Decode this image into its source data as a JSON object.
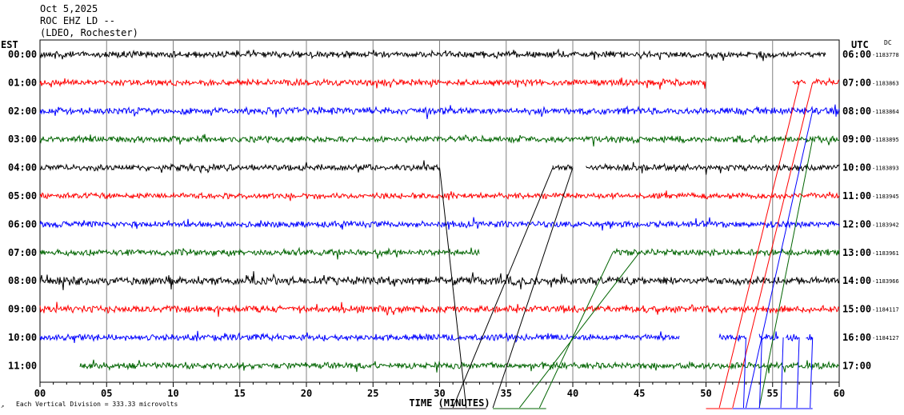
{
  "header": {
    "date": "Oct 5,2025",
    "station": "ROC EHZ LD --",
    "network": "(LDEO, Rochester)",
    "left_tz": "EST",
    "right_tz": "UTC",
    "dc_label": "DC"
  },
  "footer": {
    "xlabel": "TIME (MINUTES)",
    "scale_note": "Each Vertical Division =  333.33 microvolts"
  },
  "colors": {
    "black": "#000000",
    "red": "#ff0000",
    "blue": "#0000ff",
    "green": "#006400",
    "grid": "#808080"
  },
  "chart_data": {
    "type": "line",
    "title": "ROC EHZ LD --",
    "xlabel": "TIME (MINUTES)",
    "ylabel": "",
    "xlim": [
      0,
      60
    ],
    "x_ticks": [
      "00",
      "05",
      "10",
      "15",
      "20",
      "25",
      "30",
      "35",
      "40",
      "45",
      "50",
      "55",
      "60"
    ],
    "grid": true,
    "series": [
      {
        "local": "00:00",
        "utc": "06:00",
        "dc": "-1183778",
        "color": "black",
        "segments": [
          [
            0,
            59
          ]
        ],
        "amp": 1.0
      },
      {
        "local": "01:00",
        "utc": "07:00",
        "dc": "-1183863",
        "color": "red",
        "segments": [
          [
            0,
            50
          ],
          [
            56.5,
            57.5
          ],
          [
            58,
            60
          ]
        ],
        "amp": 1.0
      },
      {
        "local": "02:00",
        "utc": "08:00",
        "dc": "-1183864",
        "color": "blue",
        "segments": [
          [
            0,
            60
          ]
        ],
        "amp": 1.1
      },
      {
        "local": "03:00",
        "utc": "09:00",
        "dc": "-1183895",
        "color": "green",
        "segments": [
          [
            0,
            60
          ]
        ],
        "amp": 1.0
      },
      {
        "local": "04:00",
        "utc": "10:00",
        "dc": "-1183893",
        "color": "black",
        "segments": [
          [
            0,
            30
          ],
          [
            38.5,
            40
          ],
          [
            41,
            60
          ]
        ],
        "amp": 1.0
      },
      {
        "local": "05:00",
        "utc": "11:00",
        "dc": "-1183945",
        "color": "red",
        "segments": [
          [
            0,
            60
          ]
        ],
        "amp": 0.9
      },
      {
        "local": "06:00",
        "utc": "12:00",
        "dc": "-1183942",
        "color": "blue",
        "segments": [
          [
            0,
            60
          ]
        ],
        "amp": 1.0
      },
      {
        "local": "07:00",
        "utc": "13:00",
        "dc": "-1183961",
        "color": "green",
        "segments": [
          [
            0,
            33
          ],
          [
            43,
            60
          ]
        ],
        "amp": 1.0
      },
      {
        "local": "08:00",
        "utc": "14:00",
        "dc": "-1183966",
        "color": "black",
        "segments": [
          [
            0,
            60
          ]
        ],
        "amp": 1.3
      },
      {
        "local": "09:00",
        "utc": "15:00",
        "dc": "-1184117",
        "color": "red",
        "segments": [
          [
            0,
            60
          ]
        ],
        "amp": 1.1
      },
      {
        "local": "10:00",
        "utc": "16:00",
        "dc": "-1184127",
        "color": "blue",
        "segments": [
          [
            0,
            48
          ],
          [
            51,
            53
          ],
          [
            54,
            55.5
          ],
          [
            56,
            57
          ],
          [
            57.5,
            58
          ]
        ],
        "amp": 1.0
      },
      {
        "local": "11:00",
        "utc": "17:00",
        "dc": "",
        "color": "green",
        "segments": [
          [
            3,
            60
          ]
        ],
        "amp": 1.0
      }
    ]
  }
}
